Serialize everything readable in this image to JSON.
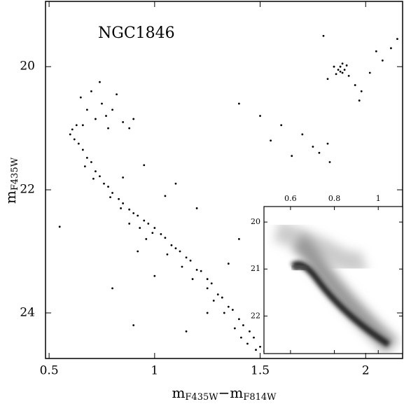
{
  "chart_data": [
    {
      "type": "scatter",
      "annotation": "NGC1846",
      "xlabel": [
        "m",
        "F435W",
        "−",
        "m",
        "F814W"
      ],
      "ylabel": [
        "m",
        "F435W"
      ],
      "xlim": [
        0.483,
        2.175
      ],
      "ylim": [
        24.74,
        18.94
      ],
      "xticks": [
        0.5,
        1,
        1.5,
        2
      ],
      "yticks": [
        20,
        22,
        24
      ],
      "series": [
        {
          "color": "#000000",
          "x": [
            0.61,
            0.63,
            0.6,
            0.64,
            0.66,
            0.62,
            0.68,
            0.7,
            0.67,
            0.72,
            0.74,
            0.71,
            0.76,
            0.78,
            0.8,
            0.79,
            0.83,
            0.85,
            0.84,
            0.88,
            0.9,
            0.92,
            0.95,
            0.97,
            1.0,
            0.99,
            1.03,
            1.05,
            1.08,
            1.1,
            1.12,
            1.15,
            1.17,
            1.2,
            1.22,
            1.25,
            1.27,
            1.3,
            1.32,
            1.35,
            1.37,
            1.4,
            1.42,
            1.45,
            1.47,
            1.5,
            1.52,
            1.48,
            1.44,
            1.38,
            1.33,
            1.28,
            1.18,
            1.06,
            0.96,
            0.88,
            1.13,
            1.25,
            1.41,
            0.93,
            0.65,
            0.7,
            0.75,
            0.8,
            0.72,
            0.78,
            0.85,
            0.88,
            0.68,
            0.74,
            0.82,
            0.9,
            0.66,
            0.77,
            0.85,
            0.95,
            1.05,
            1.1,
            1.2,
            0.92,
            1.0,
            0.8,
            1.25,
            1.35,
            0.55,
            0.9,
            1.15,
            1.4,
            1.4,
            1.5,
            1.6,
            1.7,
            1.75,
            1.78,
            1.82,
            1.83,
            1.65,
            1.55,
            1.87,
            1.88,
            1.89,
            1.9,
            1.86,
            1.91,
            1.88,
            1.85,
            1.92,
            1.89,
            1.95,
            1.82,
            1.98,
            2.02,
            2.08,
            2.12,
            2.15,
            1.8,
            2.05,
            1.97
          ],
          "y": [
            21.02,
            20.95,
            21.1,
            21.25,
            21.35,
            21.18,
            21.48,
            21.55,
            21.62,
            21.7,
            21.78,
            21.82,
            21.9,
            21.95,
            22.05,
            22.12,
            22.15,
            22.22,
            22.3,
            22.32,
            22.38,
            22.42,
            22.5,
            22.55,
            22.62,
            22.7,
            22.72,
            22.78,
            22.9,
            22.95,
            23.0,
            23.1,
            23.15,
            23.3,
            23.32,
            23.45,
            23.52,
            23.7,
            23.75,
            23.9,
            23.95,
            24.1,
            24.2,
            24.3,
            24.4,
            24.55,
            24.62,
            24.6,
            24.5,
            24.25,
            24.0,
            23.8,
            23.45,
            23.05,
            22.8,
            22.55,
            23.25,
            23.6,
            24.4,
            22.62,
            20.5,
            20.4,
            20.6,
            20.7,
            20.85,
            21.0,
            20.9,
            21.0,
            20.7,
            20.25,
            20.45,
            20.85,
            20.95,
            20.8,
            21.8,
            21.6,
            22.1,
            21.9,
            22.3,
            23.0,
            23.4,
            23.6,
            24.0,
            23.2,
            22.6,
            24.2,
            24.3,
            22.8,
            20.6,
            20.8,
            20.95,
            21.1,
            21.3,
            21.4,
            21.25,
            21.55,
            21.45,
            21.2,
            20.05,
            20.0,
            20.1,
            20.05,
            20.12,
            19.98,
            20.08,
            20.0,
            20.15,
            19.95,
            20.3,
            20.2,
            20.4,
            20.1,
            19.9,
            19.7,
            19.55,
            19.5,
            19.75,
            20.55
          ]
        }
      ]
    },
    {
      "type": "density",
      "xlim": [
        0.479,
        1.111
      ],
      "ylim": [
        22.8,
        19.67
      ],
      "xticks": [
        0.6,
        0.8,
        1
      ],
      "yticks": [
        20,
        21,
        22
      ]
    }
  ]
}
